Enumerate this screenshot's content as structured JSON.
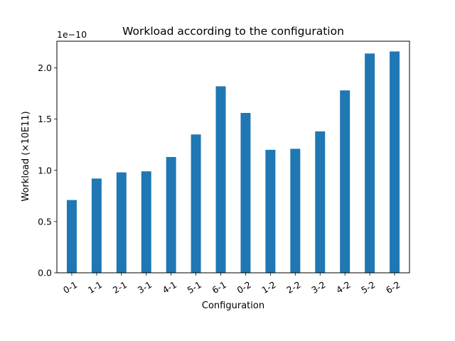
{
  "chart_data": {
    "type": "bar",
    "title": "Workload according to the configuration",
    "xlabel": "Configuration",
    "ylabel": "Workload (×10E11)",
    "offset_label": "1e−10",
    "categories": [
      "0-1",
      "1-1",
      "2-1",
      "3-1",
      "4-1",
      "5-1",
      "6-1",
      "0-2",
      "1-2",
      "2-2",
      "3-2",
      "4-2",
      "5-2",
      "6-2"
    ],
    "values": [
      0.71,
      0.92,
      0.98,
      0.99,
      1.13,
      1.35,
      1.82,
      1.56,
      1.2,
      1.21,
      1.38,
      1.78,
      2.14,
      2.16
    ],
    "value_multiplier": "1e-10",
    "ylim": [
      0,
      2.26
    ],
    "yticks": [
      "0.0",
      "0.5",
      "1.0",
      "1.5",
      "2.0"
    ],
    "bar_color": "#1f77b4",
    "grid": false,
    "legend": "none"
  }
}
